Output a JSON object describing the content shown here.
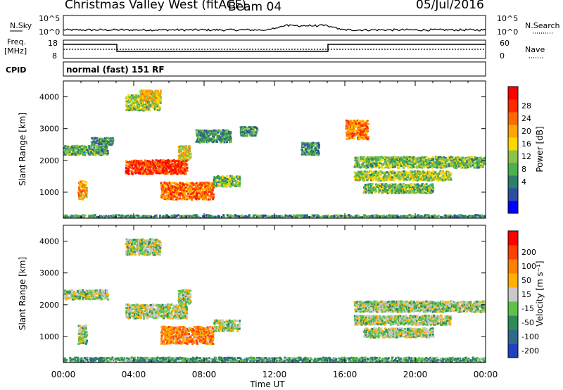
{
  "header": {
    "station": "Christmas Valley West (fitACF)",
    "beam": "Beam 04",
    "date": "05/Jul/2016"
  },
  "panels": {
    "nsky_label": "N.Sky",
    "nsky_ticks": [
      "10^5",
      "10^0"
    ],
    "nsearch_label": "N.Search",
    "nsearch_ticks": [
      "10^5",
      "10^0"
    ],
    "freq_label_1": "Freq.",
    "freq_label_2": "[MHz]",
    "freq_ticks": [
      "18",
      "8"
    ],
    "nave_label": "Nave",
    "nave_ticks": [
      "60",
      "0"
    ],
    "cpid_label": "CPID",
    "cpid_text": "normal (fast) 151 RF"
  },
  "chart_data": [
    {
      "type": "heatmap",
      "name": "power",
      "xlabel": "Time UT",
      "ylabel": "Slant Range [km]",
      "x_ticks": [
        "00:00",
        "04:00",
        "08:00",
        "12:00",
        "16:00",
        "20:00",
        "00:00"
      ],
      "xlim_hours": [
        0,
        24
      ],
      "y_ticks": [
        1000,
        2000,
        3000,
        4000
      ],
      "ylim": [
        180,
        4500
      ],
      "colorbar_label": "Power [dB]",
      "colorbar_ticks": [
        "28",
        "24",
        "20",
        "16",
        "12",
        "8",
        "4"
      ],
      "colorbar_colors": [
        "#0000ff",
        "#2b4fa3",
        "#2e7d6d",
        "#4caf50",
        "#8bc34a",
        "#ffd700",
        "#ffa500",
        "#ff6a00",
        "#ff2a00",
        "#ff0000"
      ],
      "regions": [
        {
          "t": [
            0.0,
            2.5
          ],
          "r": [
            2200,
            2500
          ],
          "level": 0.35
        },
        {
          "t": [
            1.5,
            2.8
          ],
          "r": [
            2500,
            2750
          ],
          "level": 0.3
        },
        {
          "t": [
            3.5,
            7.0
          ],
          "r": [
            1600,
            2050
          ],
          "level": 0.85
        },
        {
          "t": [
            6.5,
            7.2
          ],
          "r": [
            2050,
            2500
          ],
          "level": 0.55
        },
        {
          "t": [
            3.5,
            5.5
          ],
          "r": [
            3600,
            4100
          ],
          "level": 0.45
        },
        {
          "t": [
            4.3,
            5.5
          ],
          "r": [
            3900,
            4250
          ],
          "level": 0.6
        },
        {
          "t": [
            0.8,
            1.3
          ],
          "r": [
            800,
            1400
          ],
          "level": 0.65
        },
        {
          "t": [
            5.5,
            8.5
          ],
          "r": [
            800,
            1350
          ],
          "level": 0.75
        },
        {
          "t": [
            8.5,
            10.0
          ],
          "r": [
            1200,
            1550
          ],
          "level": 0.4
        },
        {
          "t": [
            7.5,
            9.5
          ],
          "r": [
            2600,
            3000
          ],
          "level": 0.3
        },
        {
          "t": [
            10.0,
            11.0
          ],
          "r": [
            2800,
            3100
          ],
          "level": 0.3
        },
        {
          "t": [
            13.5,
            14.5
          ],
          "r": [
            2200,
            2600
          ],
          "level": 0.3
        },
        {
          "t": [
            16.0,
            17.3
          ],
          "r": [
            2700,
            3300
          ],
          "level": 0.7
        },
        {
          "t": [
            16.5,
            24.0
          ],
          "r": [
            1800,
            2150
          ],
          "level": 0.4
        },
        {
          "t": [
            16.5,
            22.0
          ],
          "r": [
            1400,
            1700
          ],
          "level": 0.45
        },
        {
          "t": [
            17.0,
            21.0
          ],
          "r": [
            1000,
            1300
          ],
          "level": 0.4
        },
        {
          "t": [
            0.0,
            24.0
          ],
          "r": [
            180,
            320
          ],
          "level": 0.3
        }
      ]
    },
    {
      "type": "heatmap",
      "name": "velocity",
      "xlabel": "Time UT",
      "ylabel": "Slant Range [km]",
      "x_ticks": [
        "00:00",
        "04:00",
        "08:00",
        "12:00",
        "16:00",
        "20:00",
        "00:00"
      ],
      "xlim_hours": [
        0,
        24
      ],
      "y_ticks": [
        1000,
        2000,
        3000,
        4000
      ],
      "ylim": [
        180,
        4500
      ],
      "colorbar_label": "Velocity [m s⁻¹]",
      "colorbar_ticks": [
        "200",
        "100",
        "50",
        "15",
        "-15",
        "-50",
        "-100",
        "-200"
      ],
      "colorbar_colors": [
        "#2040c0",
        "#2e6a8c",
        "#2e8b57",
        "#5ec24a",
        "#c8c8c8",
        "#ffb000",
        "#ff8000",
        "#ff4000",
        "#ff0000"
      ],
      "regions": [
        {
          "t": [
            0.0,
            2.5
          ],
          "r": [
            2200,
            2500
          ],
          "level": 0.45
        },
        {
          "t": [
            3.5,
            7.0
          ],
          "r": [
            1600,
            2050
          ],
          "level": 0.45
        },
        {
          "t": [
            6.5,
            7.2
          ],
          "r": [
            2050,
            2500
          ],
          "level": 0.45
        },
        {
          "t": [
            3.5,
            5.5
          ],
          "r": [
            3600,
            4100
          ],
          "level": 0.45
        },
        {
          "t": [
            0.8,
            1.3
          ],
          "r": [
            800,
            1400
          ],
          "level": 0.45
        },
        {
          "t": [
            5.5,
            8.5
          ],
          "r": [
            800,
            1350
          ],
          "level": 0.7
        },
        {
          "t": [
            8.5,
            10.0
          ],
          "r": [
            1200,
            1550
          ],
          "level": 0.45
        },
        {
          "t": [
            16.5,
            24.0
          ],
          "r": [
            1800,
            2150
          ],
          "level": 0.45
        },
        {
          "t": [
            16.5,
            22.0
          ],
          "r": [
            1400,
            1700
          ],
          "level": 0.45
        },
        {
          "t": [
            17.0,
            21.0
          ],
          "r": [
            1000,
            1300
          ],
          "level": 0.45
        },
        {
          "t": [
            0.0,
            24.0
          ],
          "r": [
            180,
            380
          ],
          "level": 0.3
        }
      ]
    }
  ]
}
